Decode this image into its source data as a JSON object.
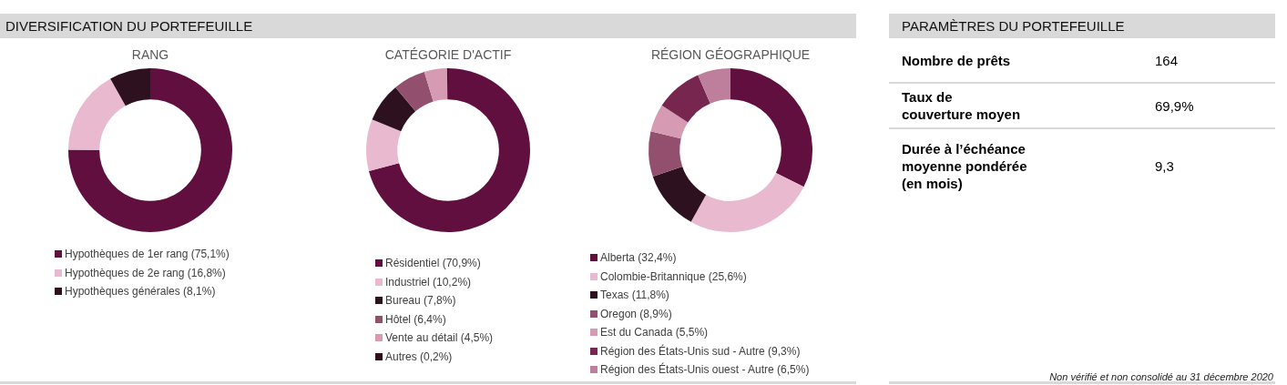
{
  "chart_data": [
    {
      "type": "donut",
      "title": "RANG",
      "annotations": [
        "DIVERSIFICATION DU PORTEFEUILLE"
      ],
      "legend": "bottom",
      "categories": [
        "Hypothèques de 1er rang (75,1%)",
        "Hypothèques de 2e rang (16,8%)",
        "Hypothèques générales (8,1%)"
      ],
      "values": [
        75.1,
        16.8,
        8.1
      ],
      "colors": [
        "#610f3f",
        "#e8b9cf",
        "#2e111f"
      ]
    },
    {
      "type": "donut",
      "title": "CATÉGORIE D'ACTIF",
      "legend": "bottom",
      "categories": [
        "Résidentiel (70,9%)",
        "Industriel (10,2%)",
        "Bureau (7,8%)",
        "Hôtel (6,4%)",
        "Vente au détail (4,5%)",
        "Autres (0,2%)"
      ],
      "values": [
        70.9,
        10.2,
        7.8,
        6.4,
        4.5,
        0.2
      ],
      "colors": [
        "#610f3f",
        "#e8b9cf",
        "#2e111f",
        "#93506e",
        "#d79ab3",
        "#2e111f"
      ]
    },
    {
      "type": "donut",
      "title": "RÉGION GÉOGRAPHIQUE",
      "legend": "bottom",
      "categories": [
        "Alberta (32,4%)",
        "Colombie-Britannique (25,6%)",
        "Texas (11,8%)",
        "Oregon (8,9%)",
        "Est du Canada (5,5%)",
        "Région des États-Unis sud - Autre (9,3%)",
        "Région des États-Unis ouest - Autre (6,5%)"
      ],
      "values": [
        32.4,
        25.6,
        11.8,
        8.9,
        5.5,
        9.3,
        6.5
      ],
      "colors": [
        "#610f3f",
        "#e8b9cf",
        "#2e111f",
        "#93506e",
        "#d79ab3",
        "#76264f",
        "#bd7f9c"
      ]
    },
    {
      "type": "other",
      "title": "PARAMÈTRES DU PORTEFEUILLE",
      "categories": [
        "Nombre de prêts",
        "Taux de\ncouverture moyen",
        "Durée à l’échéance\nmoyenne pondérée\n(en mois)"
      ],
      "value_labels": [
        "164",
        "69,9%",
        "9,3"
      ],
      "annotations": [
        "Non vérifié et non consolidé au 31 décembre 2020"
      ]
    }
  ]
}
